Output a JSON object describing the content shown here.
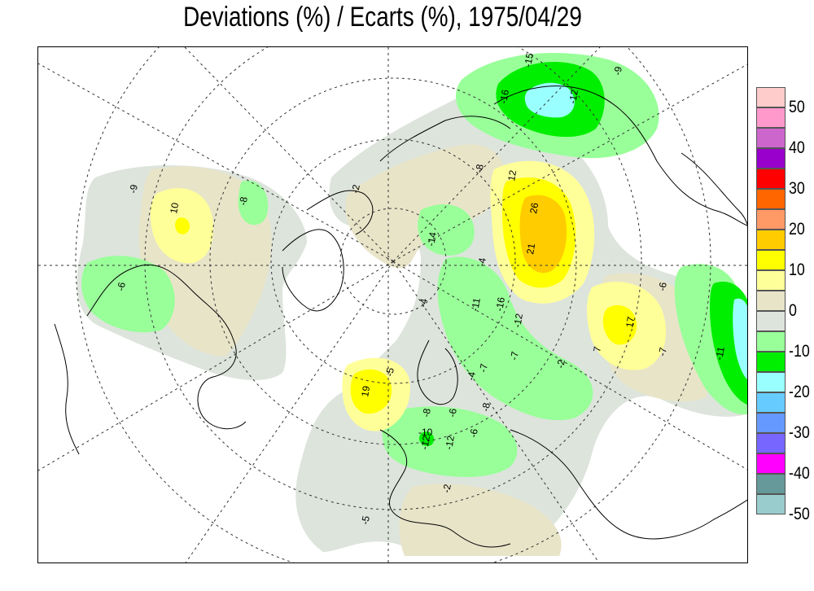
{
  "title": "Deviations (%) / Ecarts (%), 1975/04/29",
  "legend": {
    "colors": [
      "#ffcccc",
      "#ff99cc",
      "#cc66cc",
      "#9900cc",
      "#ff0000",
      "#ff6600",
      "#ff9966",
      "#ffcc00",
      "#ffff00",
      "#ffff99",
      "#e8e4c8",
      "#dde4dc",
      "#99ff99",
      "#00ee00",
      "#99ffff",
      "#66ccff",
      "#6699ff",
      "#7766ff",
      "#ff00ff",
      "#669999",
      "#99cccc"
    ],
    "labels": [
      "50",
      "40",
      "30",
      "20",
      "10",
      "0",
      "-10",
      "-20",
      "-30",
      "-40",
      "-50"
    ]
  },
  "contour_labels": [
    "10",
    "-9",
    "-8",
    "-6",
    "-15",
    "-9",
    "-16",
    "-12",
    "26",
    "21",
    "12",
    "17",
    "-6",
    "-7",
    "-11",
    "-16",
    "-12",
    "-11",
    "-7",
    "-4",
    "7",
    "-2",
    "-7",
    "-4",
    "-5",
    "-14",
    "-8",
    "-2",
    "19",
    "-10",
    "-12",
    "-8",
    "-6",
    "-6",
    "-8",
    "-12",
    "-2",
    "-5",
    "-4"
  ]
}
